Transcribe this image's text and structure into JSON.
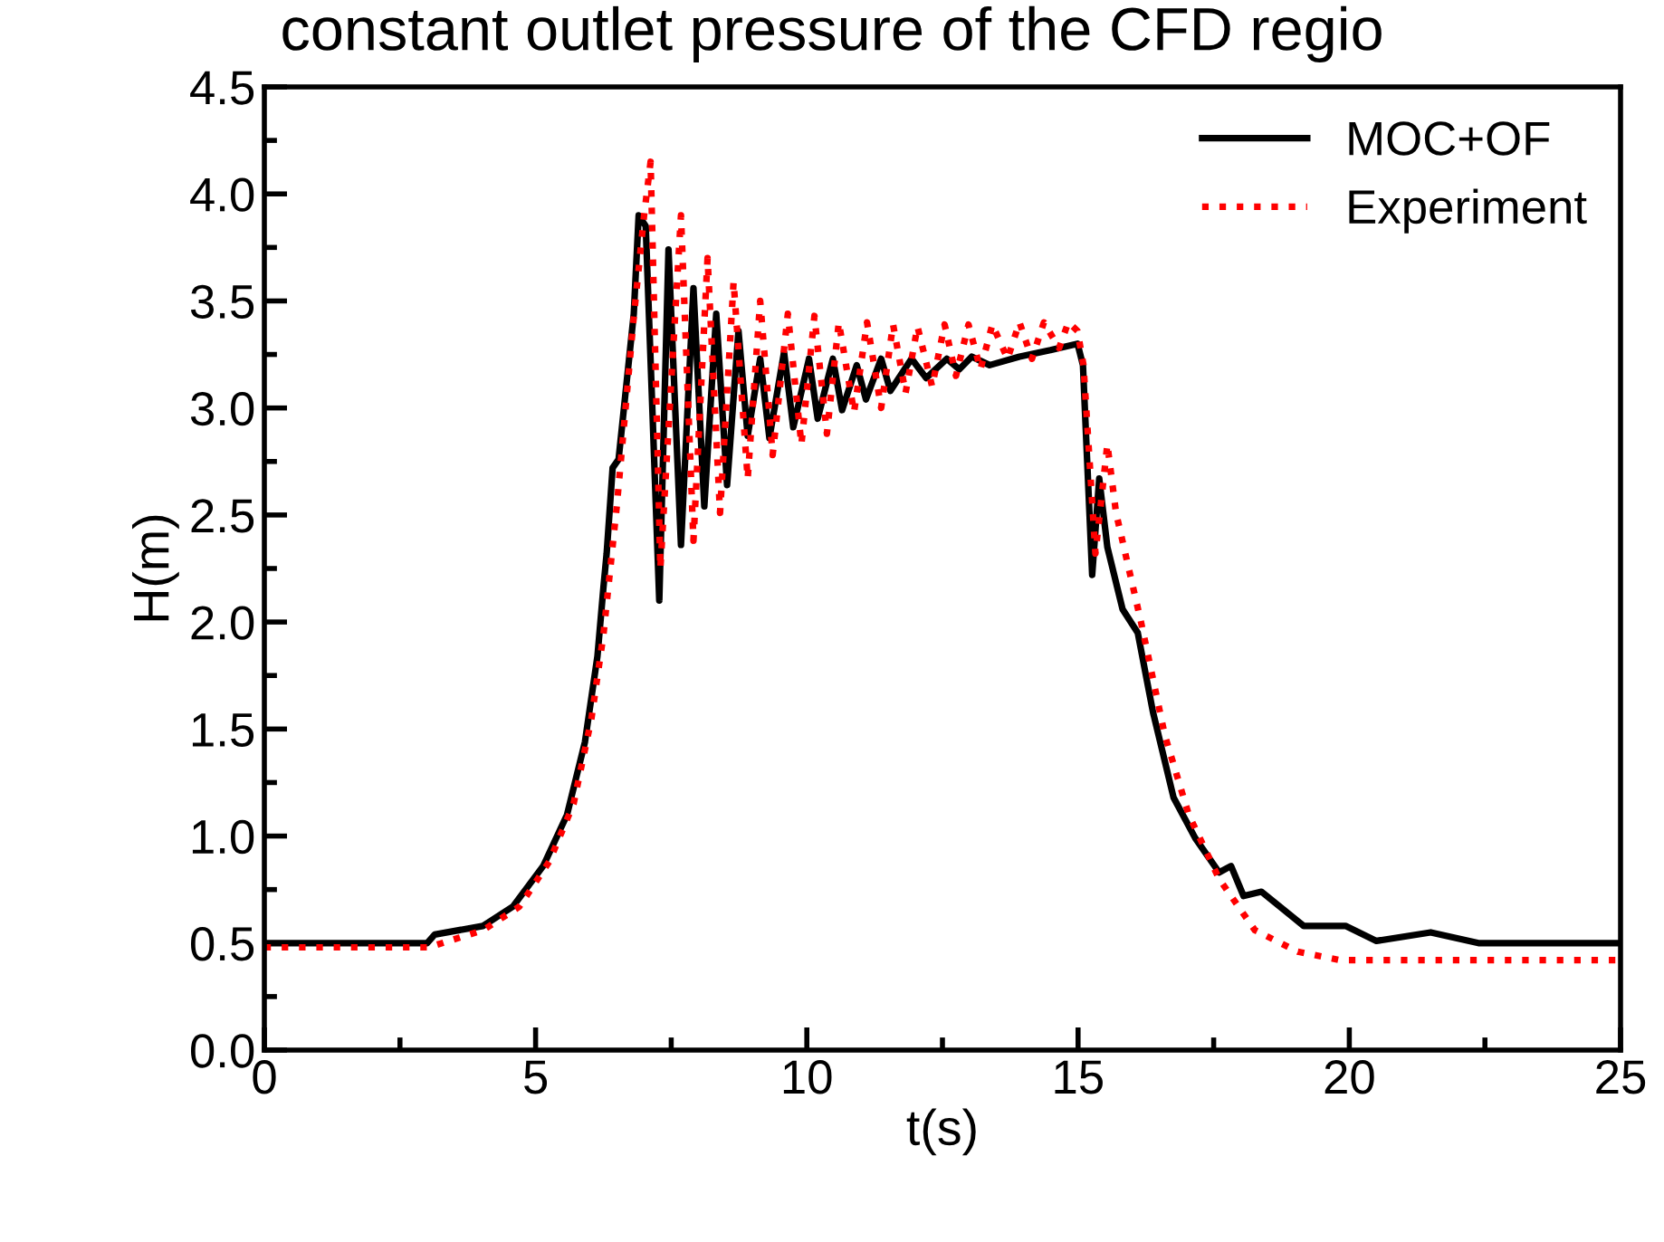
{
  "chart_data": {
    "type": "line",
    "title": "constant outlet pressure of the CFD regio",
    "xlabel": "t(s)",
    "ylabel": "H(m)",
    "xlim": [
      0,
      25
    ],
    "xticks": [
      0,
      5,
      10,
      15,
      20,
      25
    ],
    "ylim": [
      0,
      4.5
    ],
    "yticks": [
      {
        "value": 0,
        "label": "0.0"
      },
      0.5,
      {
        "value": 1,
        "label": "1.0"
      },
      1.5,
      {
        "value": 2,
        "label": "2.0"
      },
      2.5,
      {
        "value": 3,
        "label": "3.0"
      },
      3.5,
      {
        "value": 4,
        "label": "4.0"
      },
      4.5
    ],
    "grid": false,
    "legend": "top right",
    "series": [
      {
        "name": "MOC+OF",
        "color": "#000000",
        "line_style": "solid",
        "x": [
          0,
          3.0,
          3.14,
          4.03,
          4.58,
          5.14,
          5.58,
          5.91,
          6.14,
          6.25,
          6.31,
          6.42,
          6.53,
          6.81,
          6.9,
          7.03,
          7.28,
          7.45,
          7.68,
          7.91,
          8.11,
          8.33,
          8.53,
          8.74,
          8.91,
          9.14,
          9.31,
          9.58,
          9.75,
          10.04,
          10.2,
          10.48,
          10.65,
          10.92,
          11.09,
          11.37,
          11.54,
          11.93,
          12.2,
          12.58,
          12.81,
          13.04,
          13.37,
          13.92,
          14.49,
          14.99,
          15.09,
          15.26,
          15.39,
          15.54,
          15.82,
          16.1,
          16.38,
          16.76,
          17.16,
          17.6,
          17.82,
          18.05,
          18.38,
          19.16,
          19.93,
          20.5,
          21.5,
          22.38,
          25
        ],
        "values": [
          0.5,
          0.5,
          0.54,
          0.58,
          0.67,
          0.86,
          1.1,
          1.44,
          1.84,
          2.16,
          2.32,
          2.72,
          2.76,
          3.44,
          3.9,
          3.85,
          2.1,
          3.74,
          2.36,
          3.56,
          2.54,
          3.44,
          2.64,
          3.36,
          2.87,
          3.23,
          2.86,
          3.26,
          2.91,
          3.23,
          2.95,
          3.23,
          2.99,
          3.2,
          3.04,
          3.23,
          3.08,
          3.23,
          3.14,
          3.23,
          3.18,
          3.24,
          3.2,
          3.24,
          3.27,
          3.3,
          3.2,
          2.22,
          2.67,
          2.35,
          2.06,
          1.95,
          1.58,
          1.18,
          0.99,
          0.83,
          0.86,
          0.72,
          0.74,
          0.58,
          0.58,
          0.51,
          0.55,
          0.5,
          0.5
        ]
      },
      {
        "name": "Experiment",
        "color": "#ff0000",
        "line_style": "dotted",
        "x": [
          0,
          3.03,
          4.03,
          4.7,
          5.25,
          5.7,
          6.03,
          6.25,
          6.5,
          6.8,
          7.0,
          7.12,
          7.3,
          7.68,
          7.91,
          8.17,
          8.4,
          8.65,
          8.91,
          9.14,
          9.37,
          9.65,
          9.9,
          10.14,
          10.37,
          10.59,
          10.87,
          11.11,
          11.37,
          11.59,
          11.82,
          12.04,
          12.31,
          12.54,
          12.75,
          12.98,
          13.2,
          13.42,
          13.7,
          13.92,
          14.15,
          14.37,
          14.65,
          14.82,
          14.99,
          15.1,
          15.32,
          15.54,
          15.7,
          16.16,
          16.6,
          17.04,
          17.6,
          18.26,
          19.05,
          19.83,
          25
        ],
        "values": [
          0.48,
          0.48,
          0.56,
          0.67,
          0.88,
          1.15,
          1.55,
          1.94,
          2.55,
          3.4,
          3.9,
          4.15,
          2.25,
          3.9,
          2.38,
          3.7,
          2.51,
          3.59,
          2.67,
          3.5,
          2.78,
          3.44,
          2.83,
          3.43,
          2.88,
          3.4,
          2.98,
          3.4,
          3.0,
          3.39,
          3.07,
          3.38,
          3.1,
          3.39,
          3.15,
          3.39,
          3.18,
          3.39,
          3.23,
          3.4,
          3.23,
          3.4,
          3.28,
          3.4,
          3.36,
          3.2,
          2.32,
          2.83,
          2.51,
          2.0,
          1.47,
          1.1,
          0.8,
          0.56,
          0.46,
          0.42,
          0.42
        ]
      }
    ]
  }
}
